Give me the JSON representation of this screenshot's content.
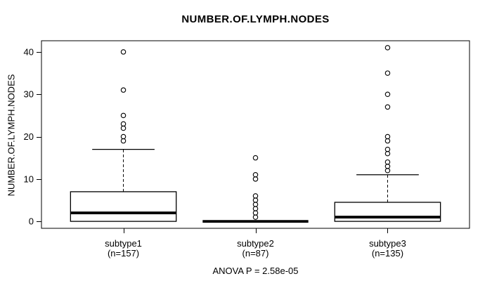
{
  "figure": {
    "title": "NUMBER.OF.LYMPH.NODES",
    "y_axis_label": "NUMBER.OF.LYMPH.NODES",
    "annotation": "ANOVA P = 2.58e-05"
  },
  "chart_data": {
    "type": "boxplot",
    "title": "NUMBER.OF.LYMPH.NODES",
    "ylabel": "NUMBER.OF.LYMPH.NODES",
    "xlabel": "",
    "ylim": [
      0,
      41
    ],
    "yticks": [
      0,
      10,
      20,
      30,
      40
    ],
    "grid": false,
    "legend": "none",
    "annotation": "ANOVA P = 2.58e-05",
    "categories": [
      "subtype1",
      "subtype2",
      "subtype3"
    ],
    "category_sublabels": [
      "(n=157)",
      "(n=87)",
      "(n=135)"
    ],
    "groups": [
      {
        "label": "subtype1",
        "n": 157,
        "whisker_low": 0,
        "q1": 0,
        "median": 2,
        "q3": 7,
        "whisker_high": 17,
        "outliers": [
          19,
          20,
          22,
          23,
          25,
          31,
          40
        ]
      },
      {
        "label": "subtype2",
        "n": 87,
        "whisker_low": 0,
        "q1": 0,
        "median": 0,
        "q3": 0,
        "whisker_high": 0,
        "outliers": [
          1,
          2,
          3,
          4,
          5,
          6,
          10,
          11,
          15
        ]
      },
      {
        "label": "subtype3",
        "n": 135,
        "whisker_low": 0,
        "q1": 0,
        "median": 1,
        "q3": 4.5,
        "whisker_high": 11,
        "outliers": [
          12,
          13,
          14,
          16,
          17,
          19,
          20,
          27,
          30,
          35,
          41
        ]
      }
    ]
  },
  "colors": {
    "foreground": "#000000",
    "background": "#ffffff"
  }
}
